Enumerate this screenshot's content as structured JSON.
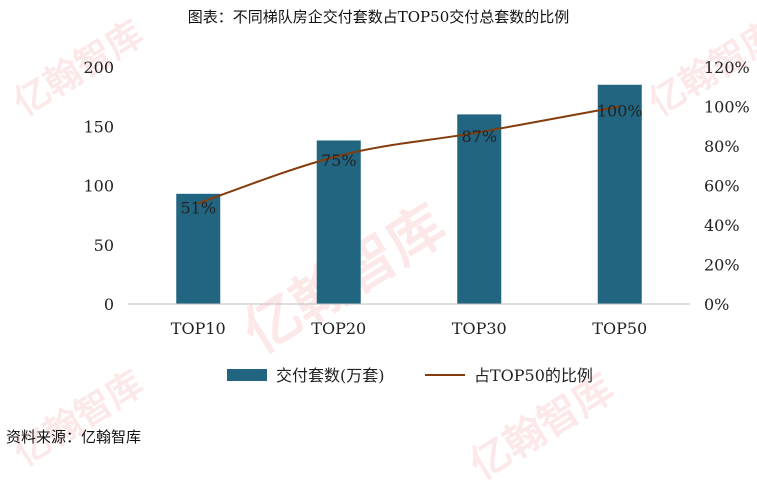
{
  "title": "图表：不同梯队房企交付套数占TOP50交付总套数的比例",
  "source": "资料来源：亿翰智库",
  "watermark": "亿翰智库",
  "chart_data": {
    "type": "bar",
    "categories": [
      "TOP10",
      "TOP20",
      "TOP30",
      "TOP50"
    ],
    "series": [
      {
        "name": "交付套数(万套)",
        "type": "bar",
        "axis": "left",
        "color": "#226580",
        "values": [
          93,
          138,
          160,
          185
        ]
      },
      {
        "name": "占TOP50的比例",
        "type": "line",
        "axis": "right",
        "color": "#843c0c",
        "values": [
          51,
          75,
          87,
          100
        ],
        "labels": [
          "51%",
          "75%",
          "87%",
          "100%"
        ]
      }
    ],
    "y_left": {
      "min": 0,
      "max": 200,
      "ticks": [
        0,
        50,
        100,
        150,
        200
      ]
    },
    "y_right": {
      "min": 0,
      "max": 120,
      "ticks": [
        0,
        20,
        40,
        60,
        80,
        100,
        120
      ],
      "tick_labels": [
        "0%",
        "20%",
        "40%",
        "60%",
        "80%",
        "100%",
        "120%"
      ]
    },
    "legend_position": "bottom",
    "grid": false
  }
}
